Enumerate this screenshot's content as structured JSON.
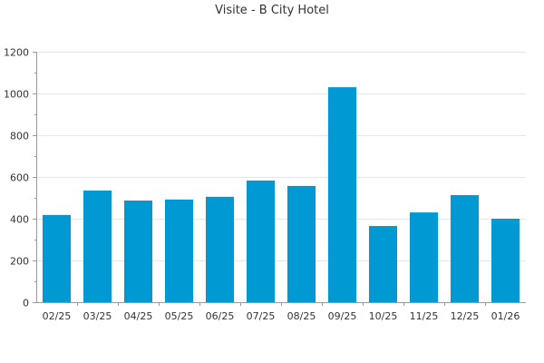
{
  "chart_data": {
    "type": "bar",
    "title": "Visite - B City Hotel",
    "xlabel": "",
    "ylabel": "",
    "categories": [
      "02/25",
      "03/25",
      "04/25",
      "05/25",
      "06/25",
      "07/25",
      "08/25",
      "09/25",
      "10/25",
      "11/25",
      "12/25",
      "01/26"
    ],
    "values": [
      418,
      535,
      487,
      492,
      505,
      583,
      557,
      1030,
      365,
      430,
      513,
      400
    ],
    "ylim": [
      0,
      1200
    ],
    "yticks": [
      0,
      200,
      400,
      600,
      800,
      1000,
      1200
    ],
    "grid": true,
    "legend": "none",
    "bar_color": "#0099d4"
  }
}
